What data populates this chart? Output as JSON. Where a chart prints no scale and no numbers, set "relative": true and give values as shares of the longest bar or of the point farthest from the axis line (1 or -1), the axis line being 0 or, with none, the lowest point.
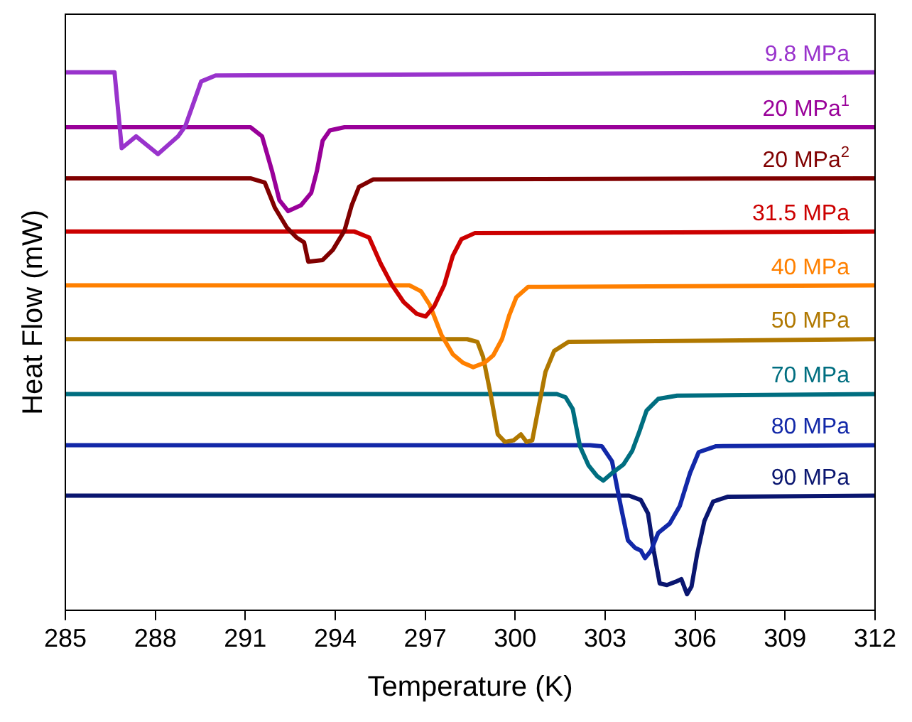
{
  "chart_data": {
    "type": "line",
    "relative": true,
    "xlabel": "Temperature (K)",
    "ylabel": "Heat Flow (mW)",
    "xlim": [
      285,
      312
    ],
    "xticks": [
      285,
      288,
      291,
      294,
      297,
      300,
      303,
      306,
      309,
      312
    ],
    "legend": false,
    "series": [
      {
        "name": "9.8 MPa",
        "color": "#9933cc",
        "x": [
          285,
          286.64,
          286.88,
          287.36,
          288.09,
          288.76,
          289.0,
          289.53,
          290.01,
          312
        ],
        "values": [
          1.0,
          1.0,
          0.859,
          0.881,
          0.848,
          0.881,
          0.9,
          0.983,
          0.994,
          1.0
        ]
      },
      {
        "name": "20 MPa$^{1}$",
        "color": "#990099",
        "x": [
          285,
          291.17,
          291.56,
          291.89,
          292.14,
          292.43,
          292.86,
          293.2,
          293.39,
          293.58,
          293.82,
          294.31,
          312
        ],
        "values": [
          0.898,
          0.898,
          0.881,
          0.817,
          0.762,
          0.742,
          0.753,
          0.776,
          0.817,
          0.873,
          0.892,
          0.898,
          0.898
        ]
      },
      {
        "name": "20 MPa$^{2}$",
        "color": "#800000",
        "x": [
          285,
          291.17,
          291.65,
          291.99,
          292.38,
          292.71,
          292.96,
          293.1,
          293.58,
          293.92,
          294.31,
          294.55,
          294.79,
          295.27,
          312
        ],
        "values": [
          0.803,
          0.803,
          0.795,
          0.748,
          0.712,
          0.693,
          0.684,
          0.648,
          0.651,
          0.67,
          0.706,
          0.753,
          0.787,
          0.801,
          0.803
        ]
      },
      {
        "name": "31.5 MPa",
        "color": "#cc0000",
        "x": [
          285,
          294.64,
          295.13,
          295.51,
          295.9,
          296.28,
          296.72,
          297.01,
          297.3,
          297.63,
          297.92,
          298.21,
          298.65,
          312
        ],
        "values": [
          0.704,
          0.704,
          0.693,
          0.645,
          0.604,
          0.573,
          0.551,
          0.546,
          0.565,
          0.604,
          0.659,
          0.69,
          0.701,
          0.704
        ]
      },
      {
        "name": "40 MPa",
        "color": "#ff8000",
        "x": [
          285,
          296.48,
          296.86,
          297.15,
          297.54,
          297.92,
          298.26,
          298.6,
          298.98,
          299.27,
          299.56,
          299.8,
          300.04,
          300.43,
          312
        ],
        "values": [
          0.604,
          0.604,
          0.593,
          0.568,
          0.512,
          0.476,
          0.46,
          0.452,
          0.46,
          0.474,
          0.504,
          0.548,
          0.582,
          0.601,
          0.604
        ]
      },
      {
        "name": "50 MPa",
        "color": "#b07800",
        "x": [
          285,
          298.4,
          298.74,
          298.93,
          299.18,
          299.42,
          299.66,
          299.95,
          300.19,
          300.38,
          300.57,
          300.77,
          301.01,
          301.3,
          301.78,
          312
        ],
        "values": [
          0.504,
          0.504,
          0.499,
          0.471,
          0.402,
          0.327,
          0.313,
          0.316,
          0.327,
          0.313,
          0.316,
          0.374,
          0.443,
          0.482,
          0.499,
          0.504
        ]
      },
      {
        "name": "70 MPa",
        "color": "#006e80",
        "x": [
          285,
          301.39,
          301.68,
          301.92,
          302.16,
          302.45,
          302.74,
          302.94,
          303.23,
          303.61,
          303.9,
          304.14,
          304.38,
          304.77,
          305.4,
          312
        ],
        "values": [
          0.402,
          0.402,
          0.396,
          0.374,
          0.305,
          0.269,
          0.249,
          0.241,
          0.255,
          0.271,
          0.296,
          0.332,
          0.371,
          0.393,
          0.399,
          0.402
        ]
      },
      {
        "name": "80 MPa",
        "color": "#1228a8",
        "x": [
          285,
          302.5,
          302.89,
          303.23,
          303.52,
          303.76,
          304.0,
          304.19,
          304.33,
          304.53,
          304.77,
          305.15,
          305.49,
          305.83,
          306.12,
          306.7,
          312
        ],
        "values": [
          0.307,
          0.307,
          0.305,
          0.277,
          0.194,
          0.13,
          0.116,
          0.111,
          0.097,
          0.111,
          0.144,
          0.161,
          0.194,
          0.255,
          0.294,
          0.305,
          0.307
        ]
      },
      {
        "name": "90 MPa",
        "color": "#0a1670",
        "x": [
          285,
          303.8,
          304.19,
          304.43,
          304.62,
          304.82,
          305.06,
          305.35,
          305.54,
          305.73,
          305.88,
          306.07,
          306.31,
          306.6,
          307.08,
          312
        ],
        "values": [
          0.213,
          0.213,
          0.205,
          0.18,
          0.111,
          0.05,
          0.047,
          0.053,
          0.058,
          0.03,
          0.044,
          0.105,
          0.166,
          0.202,
          0.211,
          0.213
        ]
      }
    ]
  }
}
